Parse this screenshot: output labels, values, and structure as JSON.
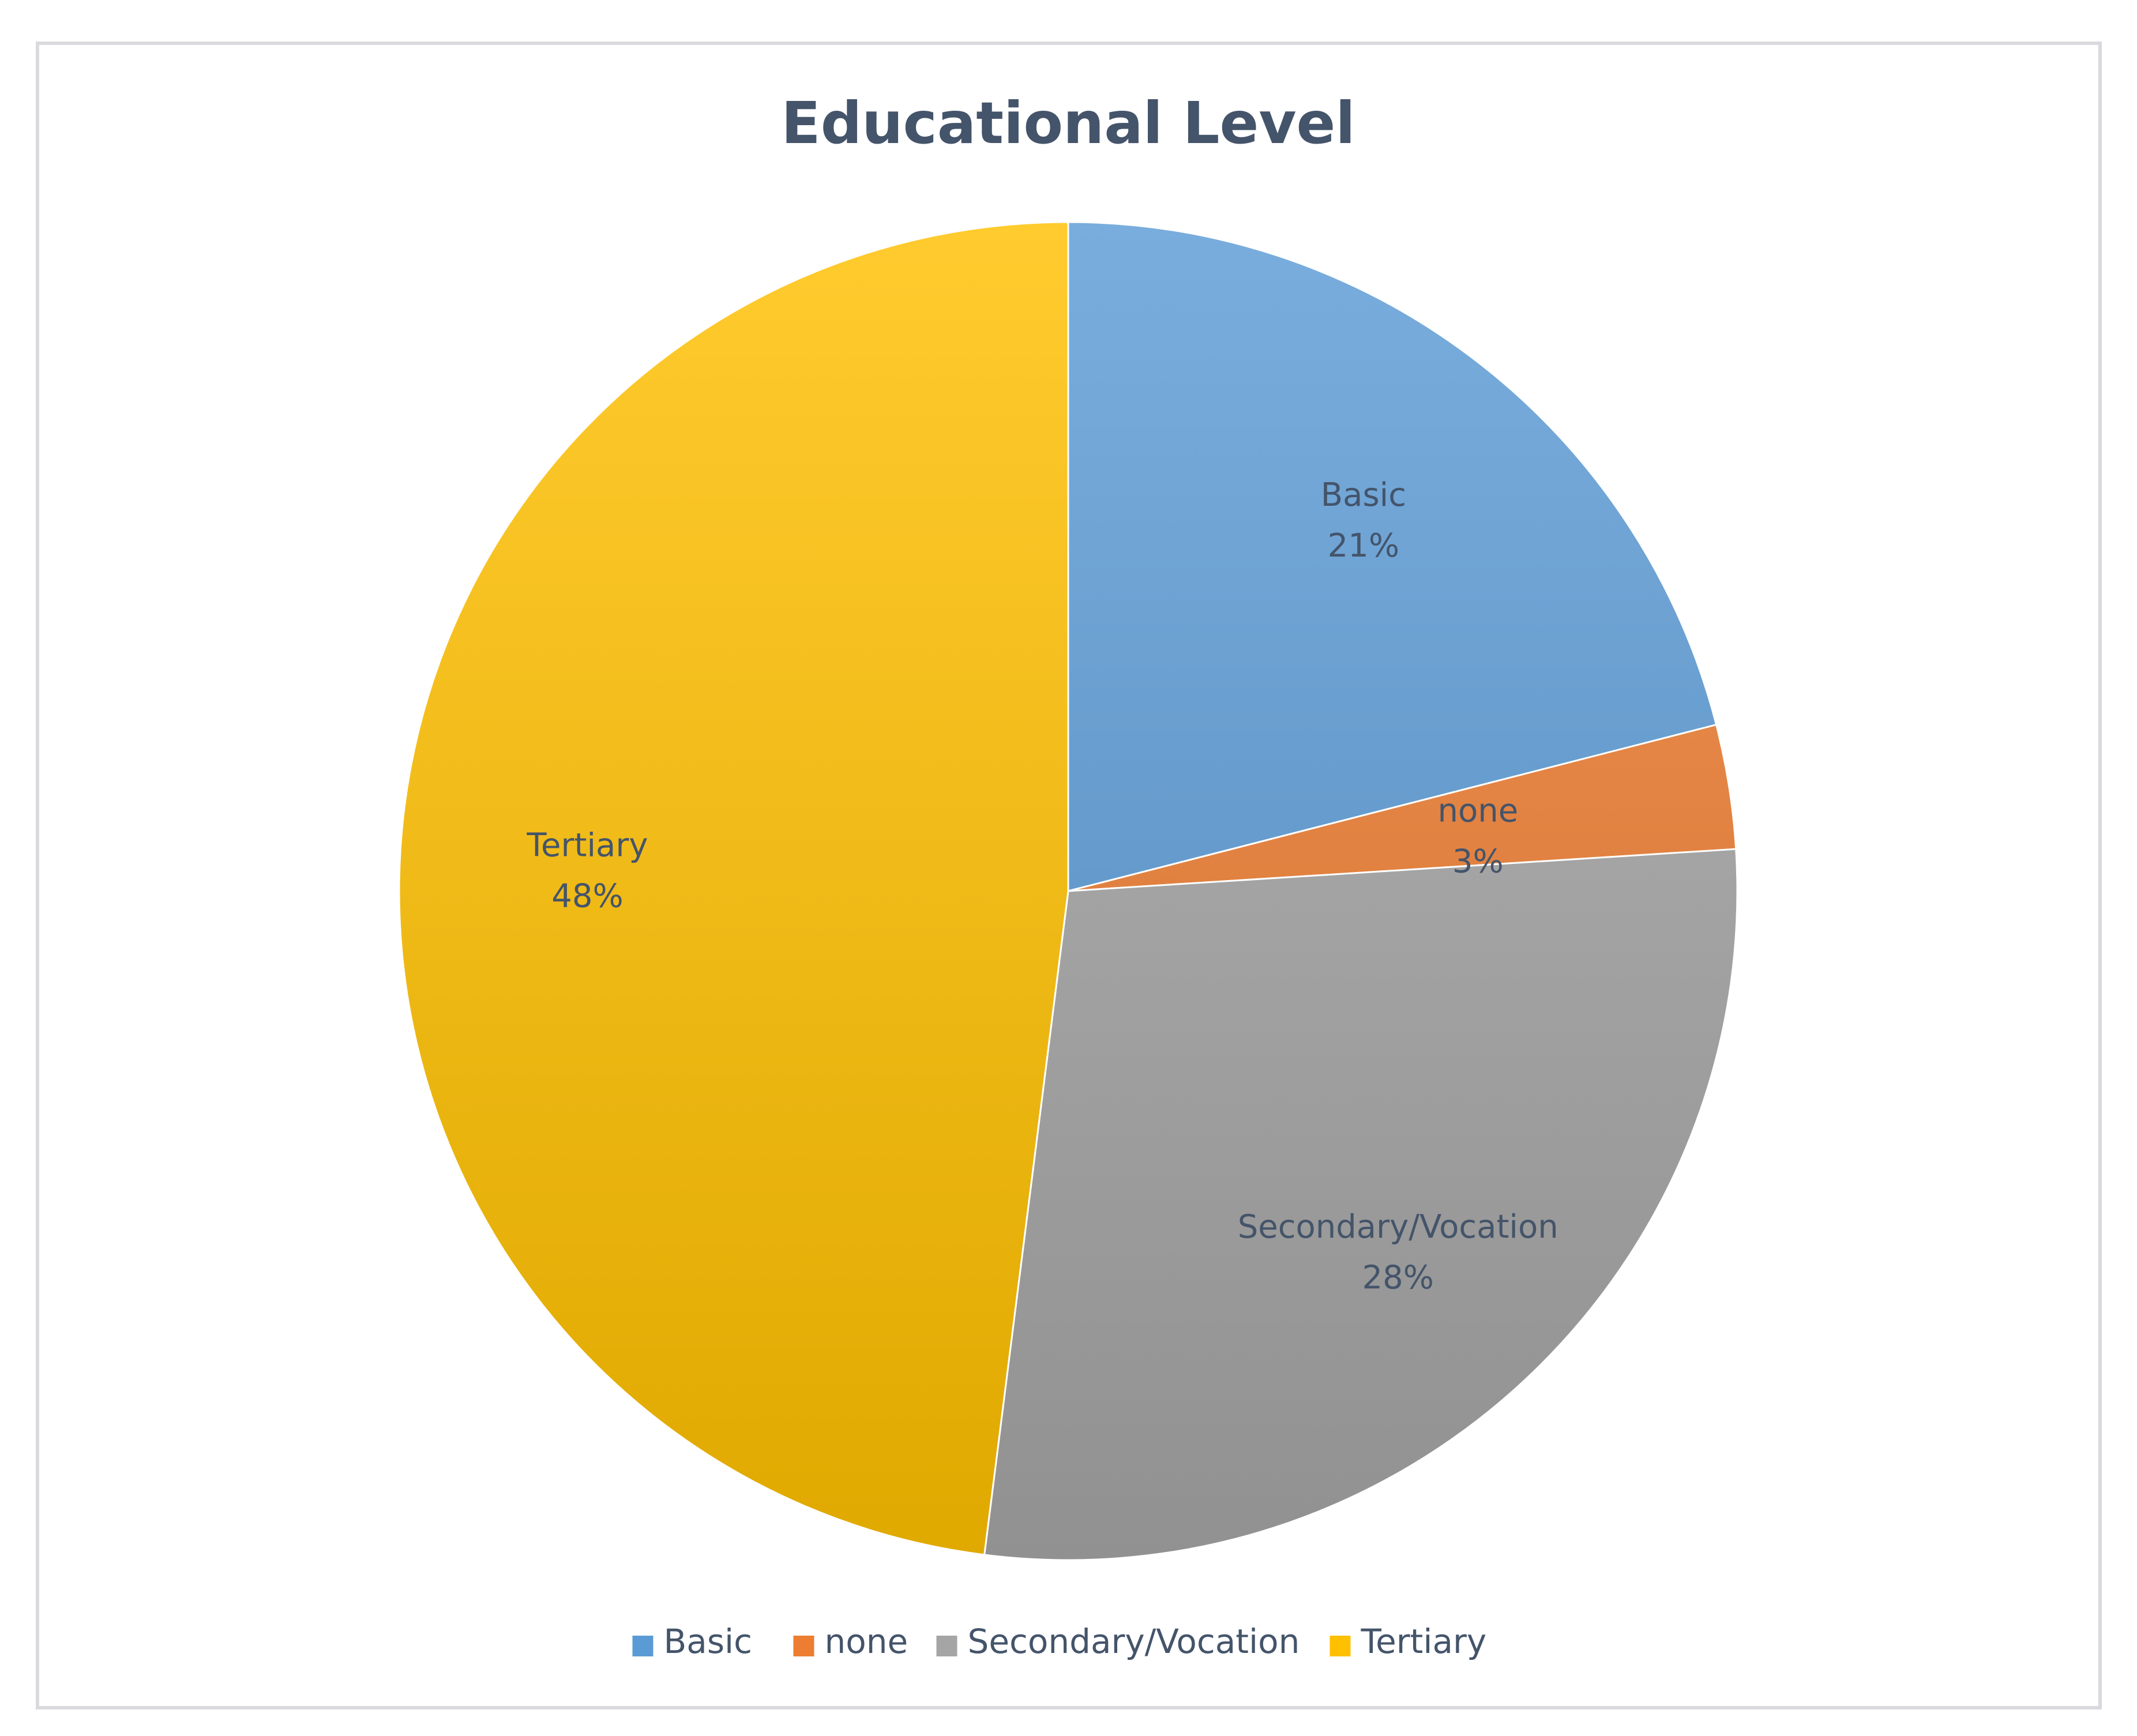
{
  "chart_data": {
    "type": "pie",
    "title": "Educational Level",
    "categories": [
      "Basic",
      "none",
      "Secondary/Vocation",
      "Tertiary"
    ],
    "values": [
      21,
      3,
      28,
      48
    ],
    "value_labels": [
      "21%",
      "3%",
      "28%",
      "48%"
    ],
    "unit": "%",
    "legend_position": "bottom",
    "colors": {
      "Basic": "#5b9bd5",
      "none": "#ed7d31",
      "Secondary/Vocation": "#a5a5a5",
      "Tertiary": "#ffc000"
    }
  }
}
